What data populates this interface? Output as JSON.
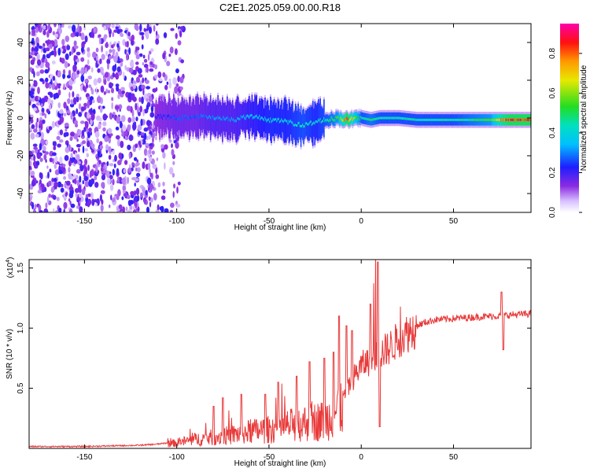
{
  "title": "C2E1.2025.059.00.00.R18",
  "chart_data": [
    {
      "type": "heatmap",
      "xlabel": "Height of straight line (km)",
      "ylabel": "Frequency (Hz)",
      "xlim": [
        -180,
        92
      ],
      "ylim": [
        -50,
        50
      ],
      "xticks": [
        -150,
        -100,
        -50,
        0,
        50
      ],
      "yticks": [
        40,
        20,
        0,
        -20,
        -40
      ],
      "colorbar": {
        "label": "Normalized spectral amplitude",
        "range": [
          0.0,
          0.95
        ],
        "ticks": [
          0.0,
          0.2,
          0.4,
          0.6,
          0.8
        ]
      },
      "ridge": {
        "x": [
          -112,
          -100,
          -90,
          -80,
          -70,
          -60,
          -50,
          -40,
          -32,
          -25,
          -20,
          -13,
          -8,
          0,
          5,
          10,
          20,
          30,
          50,
          70,
          75,
          80,
          92
        ],
        "freq": [
          1,
          0,
          1,
          0,
          -1,
          1,
          -1,
          -2,
          -4,
          -2,
          -1,
          0,
          -1,
          0,
          -1,
          0,
          0,
          -1,
          -1,
          -1,
          -1,
          -1,
          -1
        ],
        "amplitude": [
          0.25,
          0.3,
          0.3,
          0.35,
          0.35,
          0.4,
          0.45,
          0.45,
          0.5,
          0.45,
          0.5,
          0.6,
          0.95,
          0.5,
          0.55,
          0.5,
          0.5,
          0.5,
          0.5,
          0.6,
          0.85,
          0.95,
          0.95
        ]
      },
      "noise_region_x": [
        -180,
        -102
      ]
    },
    {
      "type": "line",
      "xlabel": "Height of straight line (km)",
      "ylabel": "SNR (10 * v/v)",
      "yscale_note": "(x10",
      "yscale_exp": "4",
      "xlim": [
        -180,
        92
      ],
      "ylim": [
        0,
        1.57
      ],
      "xticks": [
        -150,
        -100,
        -50,
        0,
        50
      ],
      "yticks": [
        0.5,
        1.0,
        1.5
      ],
      "color": "#e83a3a",
      "trend": {
        "x": [
          -180,
          -150,
          -120,
          -110,
          -100,
          -90,
          -80,
          -70,
          -60,
          -50,
          -40,
          -30,
          -20,
          -15,
          -10,
          -5,
          0,
          5,
          10,
          15,
          20,
          25,
          30,
          35,
          40,
          50,
          60,
          70,
          75,
          80,
          92
        ],
        "y": [
          0.01,
          0.01,
          0.02,
          0.03,
          0.05,
          0.08,
          0.1,
          0.12,
          0.15,
          0.17,
          0.2,
          0.23,
          0.25,
          0.3,
          0.42,
          0.58,
          0.7,
          0.75,
          0.8,
          0.85,
          0.92,
          0.98,
          1.02,
          1.05,
          1.07,
          1.08,
          1.09,
          1.1,
          1.1,
          1.11,
          1.12
        ]
      },
      "spikes": [
        {
          "x": -80,
          "y": 0.35
        },
        {
          "x": -75,
          "y": 0.42
        },
        {
          "x": -65,
          "y": 0.45
        },
        {
          "x": -52,
          "y": 0.45
        },
        {
          "x": -45,
          "y": 0.55
        },
        {
          "x": -35,
          "y": 0.6
        },
        {
          "x": -28,
          "y": 0.72
        },
        {
          "x": -20,
          "y": 0.75
        },
        {
          "x": -15,
          "y": 0.8
        },
        {
          "x": -12,
          "y": 1.1
        },
        {
          "x": -8,
          "y": 1.02
        },
        {
          "x": -5,
          "y": 0.98
        },
        {
          "x": 5,
          "y": 1.2
        },
        {
          "x": 9,
          "y": 1.55
        },
        {
          "x": 10,
          "y": 0.18
        },
        {
          "x": 76,
          "y": 1.3
        },
        {
          "x": 77,
          "y": 0.82
        }
      ]
    }
  ]
}
